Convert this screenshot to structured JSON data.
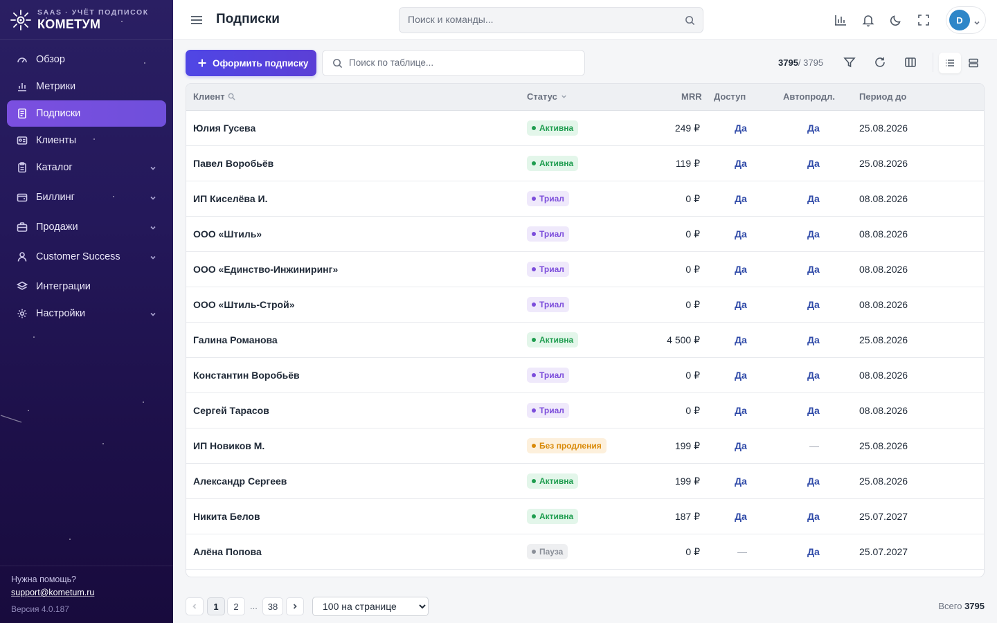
{
  "app": {
    "brand_sub": "SAAS · УЧЁТ ПОДПИСОК",
    "brand_name": "КОМЕТУМ",
    "page_title": "Подписки",
    "search_placeholder": "Поиск и команды...",
    "user_initial": "D"
  },
  "sidebar": {
    "items": [
      {
        "label": "Обзор",
        "icon": "gauge-icon"
      },
      {
        "label": "Метрики",
        "icon": "bar-chart-icon"
      },
      {
        "label": "Подписки",
        "icon": "document-icon",
        "active": true
      },
      {
        "label": "Клиенты",
        "icon": "id-card-icon"
      },
      {
        "label": "Каталог",
        "icon": "clipboard-icon",
        "expandable": true
      },
      {
        "label": "Биллинг",
        "icon": "wallet-icon",
        "expandable": true
      },
      {
        "label": "Продажи",
        "icon": "briefcase-icon",
        "expandable": true
      },
      {
        "label": "Customer Success",
        "icon": "user-icon",
        "expandable": true
      },
      {
        "label": "Интеграции",
        "icon": "layers-icon"
      },
      {
        "label": "Настройки",
        "icon": "gear-icon",
        "expandable": true
      }
    ],
    "help_text": "Нужна помощь?",
    "help_email": "support@kometum.ru",
    "version": "Версия 4.0.187"
  },
  "toolbar": {
    "create_label": "Оформить подписку",
    "table_search_placeholder": "Поиск по таблице...",
    "shown_count": "3795",
    "total_count": "/ 3795"
  },
  "table": {
    "columns": {
      "client": "Клиент",
      "status": "Статус",
      "mrr": "MRR",
      "access": "Доступ",
      "renew": "Автопродл.",
      "period": "Период до"
    },
    "rows": [
      {
        "client": "Юлия Гусева",
        "status": "Активна",
        "status_kind": "active",
        "mrr": "249 ₽",
        "access": "Да",
        "renew": "Да",
        "period": "25.08.2026"
      },
      {
        "client": "Павел Воробьёв",
        "status": "Активна",
        "status_kind": "active",
        "mrr": "119 ₽",
        "access": "Да",
        "renew": "Да",
        "period": "25.08.2026"
      },
      {
        "client": "ИП Киселёва И.",
        "status": "Триал",
        "status_kind": "trial",
        "mrr": "0 ₽",
        "access": "Да",
        "renew": "Да",
        "period": "08.08.2026"
      },
      {
        "client": "ООО «Штиль»",
        "status": "Триал",
        "status_kind": "trial",
        "mrr": "0 ₽",
        "access": "Да",
        "renew": "Да",
        "period": "08.08.2026"
      },
      {
        "client": "ООО «Единство-Инжиниринг»",
        "status": "Триал",
        "status_kind": "trial",
        "mrr": "0 ₽",
        "access": "Да",
        "renew": "Да",
        "period": "08.08.2026"
      },
      {
        "client": "ООО «Штиль-Строй»",
        "status": "Триал",
        "status_kind": "trial",
        "mrr": "0 ₽",
        "access": "Да",
        "renew": "Да",
        "period": "08.08.2026"
      },
      {
        "client": "Галина Романова",
        "status": "Активна",
        "status_kind": "active",
        "mrr": "4 500 ₽",
        "access": "Да",
        "renew": "Да",
        "period": "25.08.2026"
      },
      {
        "client": "Константин Воробьёв",
        "status": "Триал",
        "status_kind": "trial",
        "mrr": "0 ₽",
        "access": "Да",
        "renew": "Да",
        "period": "08.08.2026"
      },
      {
        "client": "Сергей Тарасов",
        "status": "Триал",
        "status_kind": "trial",
        "mrr": "0 ₽",
        "access": "Да",
        "renew": "Да",
        "period": "08.08.2026"
      },
      {
        "client": "ИП Новиков М.",
        "status": "Без продления",
        "status_kind": "nonrenew",
        "mrr": "199 ₽",
        "access": "Да",
        "renew": "—",
        "period": "25.08.2026"
      },
      {
        "client": "Александр Сергеев",
        "status": "Активна",
        "status_kind": "active",
        "mrr": "199 ₽",
        "access": "Да",
        "renew": "Да",
        "period": "25.08.2026"
      },
      {
        "client": "Никита Белов",
        "status": "Активна",
        "status_kind": "active",
        "mrr": "187 ₽",
        "access": "Да",
        "renew": "Да",
        "period": "25.07.2027"
      },
      {
        "client": "Алёна Попова",
        "status": "Пауза",
        "status_kind": "pause",
        "mrr": "0 ₽",
        "access": "—",
        "renew": "Да",
        "period": "25.07.2027"
      }
    ]
  },
  "pagination": {
    "pages": [
      "1",
      "2",
      "38"
    ],
    "current": "1",
    "ellipsis": "...",
    "per_page": "100 на странице",
    "total_label": "Всего",
    "total_value": "3795"
  },
  "colors": {
    "accent": "#4f46e5",
    "sidebar_active": "#7b4fe0",
    "status_active": "#1f9d4f",
    "status_trial": "#7c4ddb",
    "status_nonrenew": "#d98a09",
    "status_pause": "#8b9099",
    "link": "#2f4aa8"
  }
}
